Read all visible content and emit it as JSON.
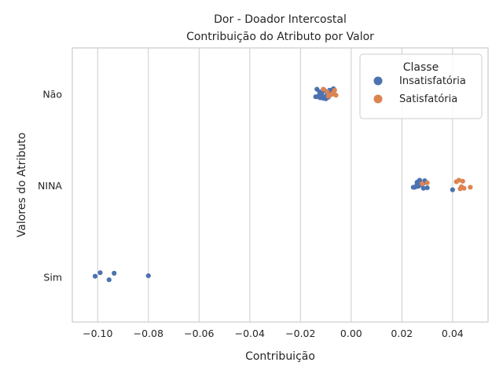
{
  "chart_data": {
    "type": "scatter",
    "title": "Dor - Doador Intercostal",
    "subtitle": "Contribuição do Atributo por Valor",
    "xlabel": "Contribuição",
    "ylabel": "Valores do Atributo",
    "xlim": [
      -0.11,
      0.054
    ],
    "x_ticks": [
      -0.1,
      -0.08,
      -0.06,
      -0.04,
      -0.02,
      0.0,
      0.02,
      0.04
    ],
    "x_tick_labels": [
      "−0.10",
      "−0.08",
      "−0.06",
      "−0.04",
      "−0.02",
      "0.00",
      "0.02",
      "0.04"
    ],
    "categories": [
      "Não",
      "NINA",
      "Sim"
    ],
    "grid": "vertical",
    "legend": {
      "title": "Classe",
      "placement": "top-right"
    },
    "series": [
      {
        "name": "Insatisfatória",
        "color": "#4c72b0",
        "points": [
          {
            "category": "Não",
            "x": -0.0135,
            "jitter": -0.1
          },
          {
            "category": "Não",
            "x": -0.0125,
            "jitter": -0.05
          },
          {
            "category": "Não",
            "x": -0.012,
            "jitter": 0.0
          },
          {
            "category": "Não",
            "x": -0.0132,
            "jitter": 0.05
          },
          {
            "category": "Não",
            "x": -0.011,
            "jitter": 0.08
          },
          {
            "category": "Não",
            "x": -0.0105,
            "jitter": -0.07
          },
          {
            "category": "Não",
            "x": -0.0115,
            "jitter": 0.02
          },
          {
            "category": "Não",
            "x": -0.0095,
            "jitter": -0.03
          },
          {
            "category": "Não",
            "x": -0.009,
            "jitter": 0.06
          },
          {
            "category": "Não",
            "x": -0.01,
            "jitter": 0.09
          },
          {
            "category": "Não",
            "x": -0.0108,
            "jitter": -0.09
          },
          {
            "category": "Não",
            "x": -0.008,
            "jitter": -0.01
          },
          {
            "category": "Não",
            "x": -0.007,
            "jitter": -0.11
          },
          {
            "category": "Não",
            "x": -0.0128,
            "jitter": 0.03
          },
          {
            "category": "Não",
            "x": -0.0118,
            "jitter": -0.02
          },
          {
            "category": "Não",
            "x": -0.0098,
            "jitter": 0.04
          },
          {
            "category": "Não",
            "x": -0.0122,
            "jitter": 0.07
          },
          {
            "category": "Não",
            "x": -0.014,
            "jitter": 0.05
          },
          {
            "category": "Não",
            "x": -0.0112,
            "jitter": -0.06
          },
          {
            "category": "Não",
            "x": -0.0085,
            "jitter": -0.08
          },
          {
            "category": "NINA",
            "x": 0.027,
            "jitter": -0.11
          },
          {
            "category": "NINA",
            "x": 0.029,
            "jitter": -0.1
          },
          {
            "category": "NINA",
            "x": 0.026,
            "jitter": -0.07
          },
          {
            "category": "NINA",
            "x": 0.0285,
            "jitter": -0.05
          },
          {
            "category": "NINA",
            "x": 0.026,
            "jitter": -0.03
          },
          {
            "category": "NINA",
            "x": 0.0275,
            "jitter": -0.02
          },
          {
            "category": "NINA",
            "x": 0.0255,
            "jitter": 0.02
          },
          {
            "category": "NINA",
            "x": 0.0265,
            "jitter": 0.01
          },
          {
            "category": "NINA",
            "x": 0.025,
            "jitter": 0.03
          },
          {
            "category": "NINA",
            "x": 0.03,
            "jitter": 0.04
          },
          {
            "category": "NINA",
            "x": 0.0285,
            "jitter": 0.05
          },
          {
            "category": "NINA",
            "x": 0.04,
            "jitter": 0.08
          },
          {
            "category": "NINA",
            "x": 0.0245,
            "jitter": 0.03
          },
          {
            "category": "Sim",
            "x": -0.099,
            "jitter": -0.09
          },
          {
            "category": "Sim",
            "x": -0.0935,
            "jitter": -0.08
          },
          {
            "category": "Sim",
            "x": -0.101,
            "jitter": -0.02
          },
          {
            "category": "Sim",
            "x": -0.08,
            "jitter": -0.03
          },
          {
            "category": "Sim",
            "x": -0.0955,
            "jitter": 0.05
          }
        ]
      },
      {
        "name": "Satisfatória",
        "color": "#dd8452",
        "points": [
          {
            "category": "Não",
            "x": -0.011,
            "jitter": -0.1
          },
          {
            "category": "Não",
            "x": -0.0065,
            "jitter": -0.08
          },
          {
            "category": "Não",
            "x": -0.007,
            "jitter": -0.03
          },
          {
            "category": "Não",
            "x": -0.0075,
            "jitter": 0.0
          },
          {
            "category": "Não",
            "x": -0.006,
            "jitter": 0.02
          },
          {
            "category": "Não",
            "x": -0.009,
            "jitter": 0.04
          },
          {
            "category": "Não",
            "x": -0.0095,
            "jitter": -0.05
          },
          {
            "category": "Não",
            "x": -0.008,
            "jitter": 0.01
          },
          {
            "category": "NINA",
            "x": 0.0425,
            "jitter": -0.11
          },
          {
            "category": "NINA",
            "x": 0.044,
            "jitter": -0.09
          },
          {
            "category": "NINA",
            "x": 0.0415,
            "jitter": -0.08
          },
          {
            "category": "NINA",
            "x": 0.03,
            "jitter": -0.06
          },
          {
            "category": "NINA",
            "x": 0.028,
            "jitter": -0.04
          },
          {
            "category": "NINA",
            "x": 0.0435,
            "jitter": 0.02
          },
          {
            "category": "NINA",
            "x": 0.047,
            "jitter": 0.03
          },
          {
            "category": "NINA",
            "x": 0.0445,
            "jitter": 0.05
          },
          {
            "category": "NINA",
            "x": 0.043,
            "jitter": 0.06
          }
        ]
      }
    ]
  }
}
